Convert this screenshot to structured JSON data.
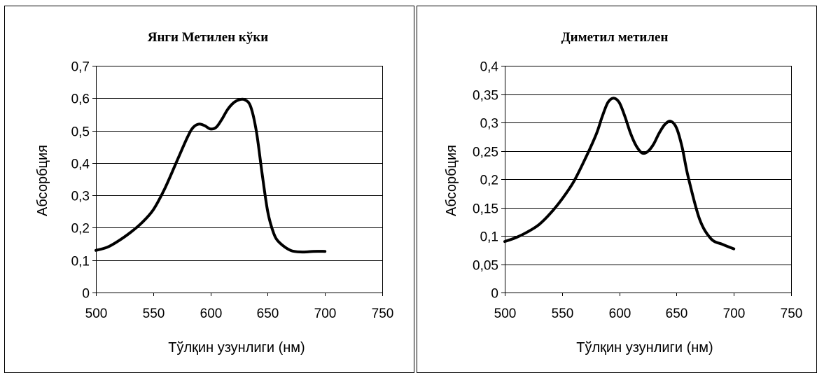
{
  "chart_data": [
    {
      "type": "line",
      "title": "Янги Метилен кўки",
      "xlabel": "Тўлқин узунлиги (нм)",
      "ylabel": "Абсорбция",
      "xlim": [
        500,
        750
      ],
      "ylim": [
        0,
        0.7
      ],
      "xticks": [
        "500",
        "550",
        "600",
        "650",
        "700",
        "750"
      ],
      "yticks": [
        "0",
        "0,1",
        "0,2",
        "0,3",
        "0,4",
        "0,5",
        "0,6",
        "0,7"
      ],
      "grid": "horizontal",
      "line_color": "#000000",
      "series": [
        {
          "x": [
            500,
            510,
            520,
            530,
            540,
            550,
            560,
            570,
            580,
            585,
            590,
            595,
            600,
            605,
            610,
            615,
            620,
            625,
            630,
            635,
            640,
            645,
            650,
            655,
            660,
            670,
            680,
            690,
            700
          ],
          "y": [
            0.13,
            0.14,
            0.16,
            0.185,
            0.215,
            0.255,
            0.32,
            0.4,
            0.48,
            0.51,
            0.52,
            0.515,
            0.505,
            0.51,
            0.535,
            0.565,
            0.585,
            0.595,
            0.595,
            0.575,
            0.5,
            0.37,
            0.25,
            0.185,
            0.155,
            0.13,
            0.125,
            0.127,
            0.127
          ]
        }
      ]
    },
    {
      "type": "line",
      "title": "Диметил метилен",
      "xlabel": "Тўлқин узунлиги (нм)",
      "ylabel": "Абсорбция",
      "xlim": [
        500,
        750
      ],
      "ylim": [
        0,
        0.4
      ],
      "xticks": [
        "500",
        "550",
        "600",
        "650",
        "700",
        "750"
      ],
      "yticks": [
        "0",
        "0,05",
        "0,1",
        "0,15",
        "0,2",
        "0,25",
        "0,3",
        "0,35",
        "0,4"
      ],
      "grid": "horizontal",
      "line_color": "#000000",
      "series": [
        {
          "x": [
            500,
            510,
            520,
            530,
            540,
            550,
            560,
            570,
            580,
            585,
            590,
            595,
            600,
            605,
            610,
            615,
            620,
            625,
            630,
            635,
            640,
            645,
            650,
            655,
            660,
            670,
            680,
            690,
            700
          ],
          "y": [
            0.09,
            0.097,
            0.107,
            0.12,
            0.14,
            0.165,
            0.195,
            0.235,
            0.28,
            0.31,
            0.335,
            0.343,
            0.335,
            0.31,
            0.28,
            0.258,
            0.246,
            0.249,
            0.262,
            0.282,
            0.297,
            0.302,
            0.29,
            0.255,
            0.205,
            0.13,
            0.095,
            0.085,
            0.077
          ]
        }
      ]
    }
  ]
}
